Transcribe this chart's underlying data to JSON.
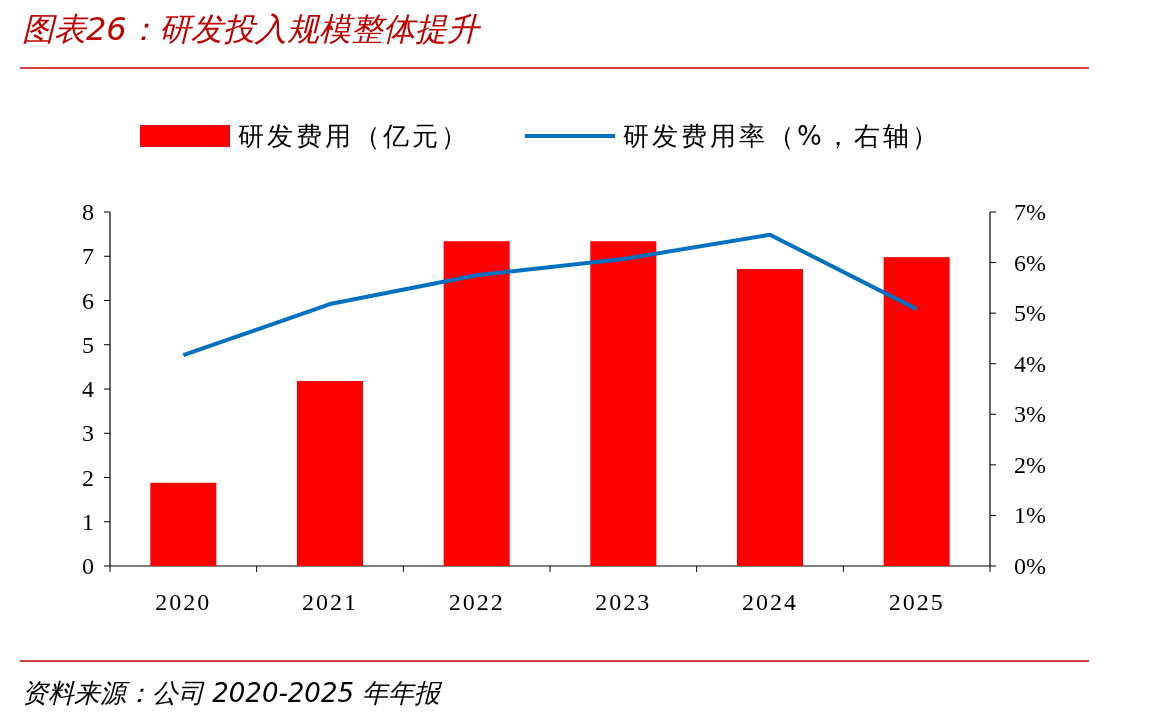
{
  "chart_data": {
    "type": "bar",
    "title": "图表26：研发投入规模整体提升",
    "annotations": [
      "资料来源：公司 2020-2025 年年报"
    ],
    "categories": [
      "2020",
      "2021",
      "2022",
      "2023",
      "2024",
      "2025"
    ],
    "series": [
      {
        "name": "研发费用（亿元）",
        "color": "#ff0000",
        "values": [
          1.88,
          4.18,
          7.34,
          7.34,
          6.71,
          6.98
        ]
      },
      {
        "name": "研发费用率（%，右轴）",
        "type": "line",
        "axis": "y2",
        "color": "#0070c0",
        "values": [
          4.17,
          5.18,
          5.75,
          6.07,
          6.55,
          5.08
        ]
      }
    ],
    "ylim": [
      0,
      8
    ],
    "yticks": [
      0,
      1,
      2,
      3,
      4,
      5,
      6,
      7,
      8
    ],
    "y2lim": [
      0,
      7
    ],
    "y2ticks": [
      {
        "value": 0,
        "label": "0%"
      },
      {
        "value": 1,
        "label": "1%"
      },
      {
        "value": 2,
        "label": "2%"
      },
      {
        "value": 3,
        "label": "3%"
      },
      {
        "value": 4,
        "label": "4%"
      },
      {
        "value": 5,
        "label": "5%"
      },
      {
        "value": 6,
        "label": "6%"
      },
      {
        "value": 7,
        "label": "7%"
      }
    ],
    "legend": "top"
  }
}
